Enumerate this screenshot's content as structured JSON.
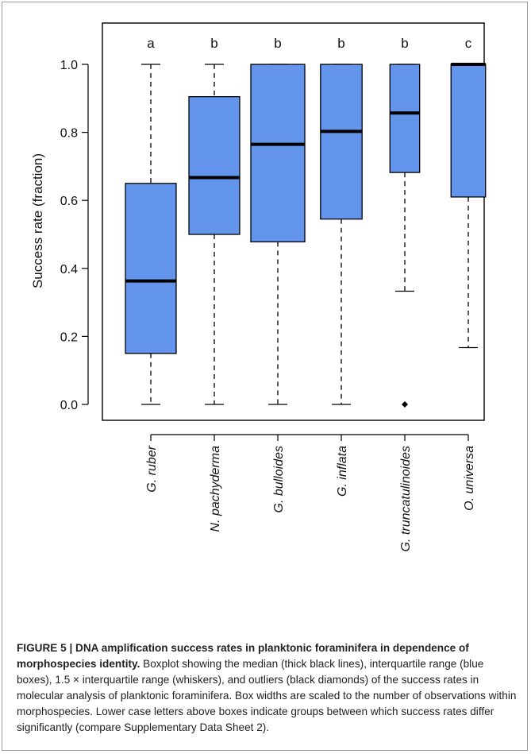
{
  "chart_data": {
    "type": "box",
    "title": "",
    "xlabel": "",
    "ylabel": "Success rate (fraction)",
    "ylim": [
      0,
      1.05
    ],
    "yticks": [
      "0.0",
      "0.2",
      "0.4",
      "0.6",
      "0.8",
      "1.0"
    ],
    "box_color": "#6495ed",
    "categories": [
      "G. ruber",
      "N. pachyderma",
      "G. bulloides",
      "G. inflata",
      "G. truncatulinoides",
      "O. universa"
    ],
    "group_letters": [
      "a",
      "b",
      "b",
      "b",
      "b",
      "c"
    ],
    "boxes": [
      {
        "whisker_low": 0.0,
        "q1": 0.15,
        "median": 0.363,
        "q3": 0.65,
        "whisker_high": 1.0,
        "outliers": [],
        "relative_width": 0.94
      },
      {
        "whisker_low": 0.0,
        "q1": 0.5,
        "median": 0.667,
        "q3": 0.905,
        "whisker_high": 1.0,
        "outliers": [],
        "relative_width": 0.94
      },
      {
        "whisker_low": 0.0,
        "q1": 0.478,
        "median": 0.765,
        "q3": 1.0,
        "whisker_high": 1.0,
        "outliers": [],
        "relative_width": 1.0
      },
      {
        "whisker_low": 0.0,
        "q1": 0.545,
        "median": 0.803,
        "q3": 1.0,
        "whisker_high": 1.0,
        "outliers": [],
        "relative_width": 0.77
      },
      {
        "whisker_low": 0.333,
        "q1": 0.682,
        "median": 0.857,
        "q3": 1.0,
        "whisker_high": 1.0,
        "outliers": [
          0.0
        ],
        "relative_width": 0.55
      },
      {
        "whisker_low": 0.167,
        "q1": 0.61,
        "median": 1.0,
        "q3": 1.0,
        "whisker_high": 1.0,
        "outliers": [],
        "relative_width": 0.64
      }
    ]
  },
  "caption": {
    "label": "FIGURE 5 | DNA amplification success rates in planktonic foraminifera in dependence of morphospecies identity.",
    "text": "Boxplot showing the median (thick black lines), interquartile range (blue boxes), 1.5 × interquartile range (whiskers), and outliers (black diamonds) of the success rates in molecular analysis of planktonic foraminifera. Box widths are scaled to the number of observations within morphospecies. Lower case letters above boxes indicate groups between which success rates differ significantly (compare Supplementary Data Sheet 2)."
  }
}
